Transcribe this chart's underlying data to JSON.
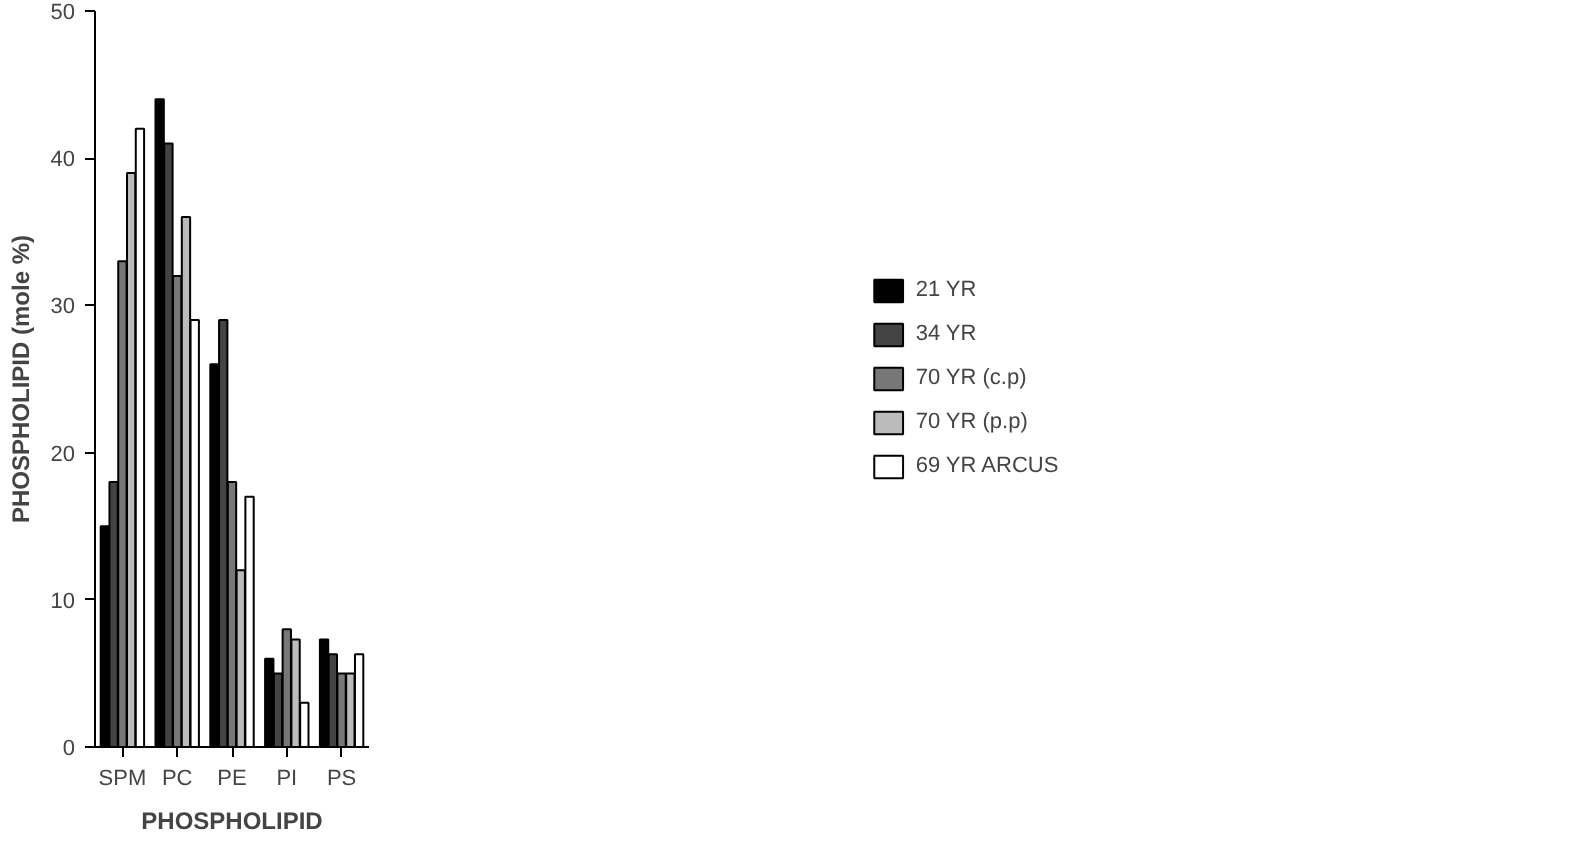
{
  "chart_data": {
    "type": "bar",
    "xlabel": "PHOSPHOLIPID",
    "ylabel": "PHOSPHOLIPID (mole %)",
    "categories": [
      "SPM",
      "PC",
      "PE",
      "PI",
      "PS"
    ],
    "ylim": [
      0,
      50
    ],
    "yticks": [
      0,
      10,
      20,
      30,
      40,
      50
    ],
    "grid": false,
    "legend": "right",
    "series": [
      {
        "name": "21 YR",
        "color": "#000000",
        "values": [
          15,
          44,
          26,
          6,
          7.3
        ]
      },
      {
        "name": "34 YR",
        "color": "#444444",
        "values": [
          18,
          41,
          29,
          5,
          6.3
        ]
      },
      {
        "name": "70 YR (c.p)",
        "color": "#777777",
        "values": [
          33,
          32,
          18,
          8,
          5
        ]
      },
      {
        "name": "70 YR (p.p)",
        "color": "#bbbbbb",
        "values": [
          39,
          36,
          12,
          7.3,
          5
        ]
      },
      {
        "name": "69 YR ARCUS",
        "color": "#ffffff",
        "values": [
          42,
          29,
          17,
          3,
          6.3
        ]
      }
    ]
  }
}
